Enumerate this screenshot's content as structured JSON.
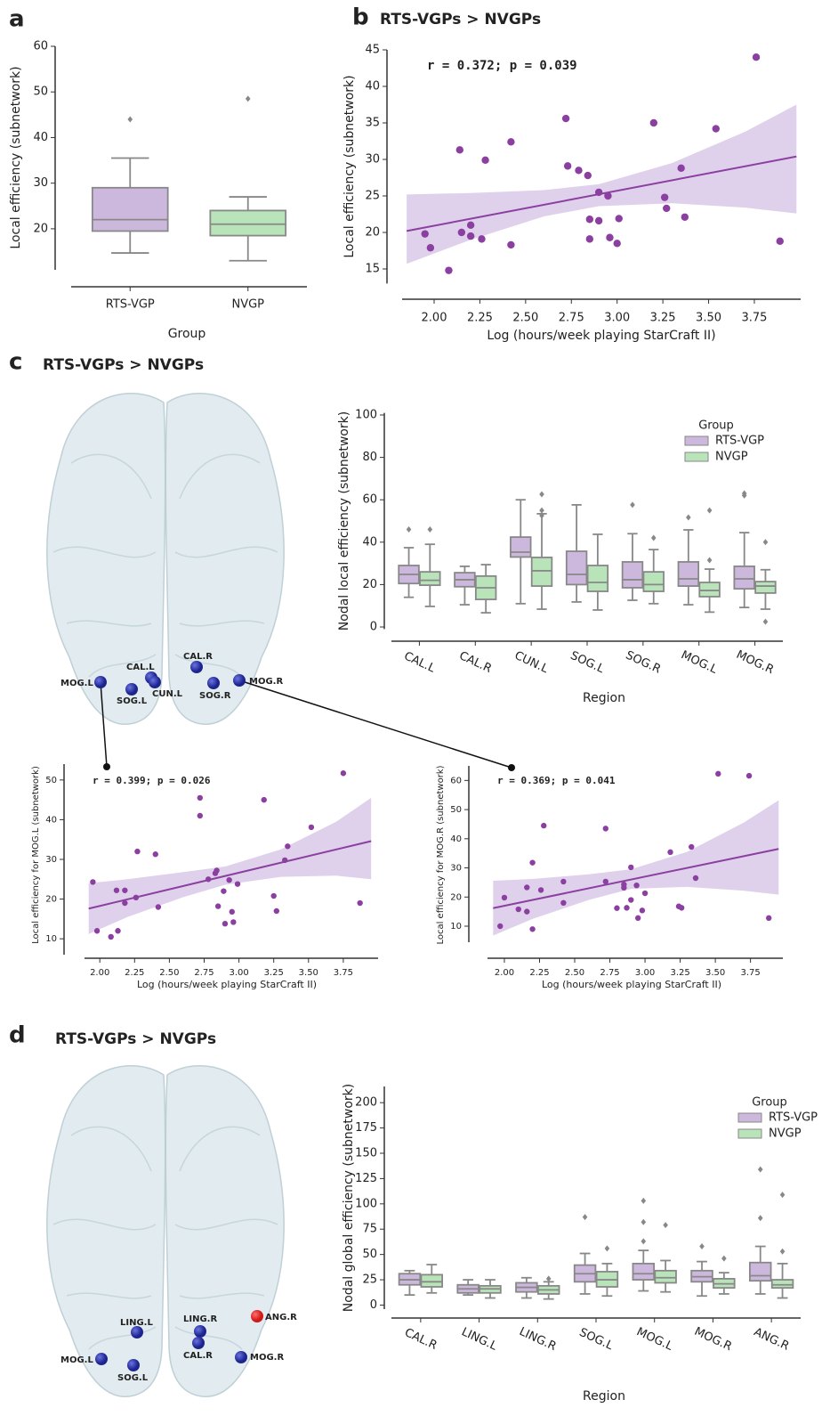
{
  "panels": [
    {
      "letter": "a"
    },
    {
      "letter": "b"
    },
    {
      "letter": "c",
      "title": "RTS-VGPs > NVGPs"
    },
    {
      "letter": "d",
      "title": "RTS-VGPs > NVGPs"
    }
  ],
  "brain_c": {
    "nodes": [
      "MOG.L",
      "SOG.L",
      "CAL.L",
      "CUN.L",
      "CAL.R",
      "SOG.R",
      "MOG.R"
    ]
  },
  "brain_d": {
    "nodes": [
      "LING.L",
      "MOG.L",
      "SOG.L",
      "LING.R",
      "CAL.R",
      "ANG.R",
      "MOG.R"
    ]
  },
  "chart_data": [
    {
      "type": "box",
      "x_label": "Group",
      "y_label": "Local efficiency (subnetwork)",
      "categories": [
        "RTS-VGP",
        "NVGP"
      ],
      "colors": [
        "#cdb8dd",
        "#b9e3b9"
      ],
      "boxes": [
        {
          "whislo": 14.7,
          "q1": 19.5,
          "med": 22,
          "q3": 29,
          "whishi": 35.5,
          "fliers": [
            44
          ]
        },
        {
          "whislo": 13,
          "q1": 18.5,
          "med": 21,
          "q3": 24,
          "whishi": 27,
          "fliers": [
            48.5
          ]
        }
      ],
      "ylim": [
        11,
        60
      ],
      "yticks": [
        20,
        30,
        40,
        50,
        60
      ]
    },
    {
      "type": "scatter",
      "title": "RTS-VGPs > NVGPs",
      "annotation": "r = 0.372; p = 0.039",
      "x_label": "Log (hours/week playing StarCraft II)",
      "y_label": "Local efficiency (subnetwork)",
      "color": "#8b3fa0",
      "band_color": "#d9c8e8",
      "x": [
        1.95,
        1.98,
        2.08,
        2.14,
        2.15,
        2.2,
        2.2,
        2.26,
        2.28,
        2.42,
        2.42,
        2.72,
        2.73,
        2.79,
        2.84,
        2.85,
        2.85,
        2.9,
        2.9,
        2.95,
        2.96,
        3.0,
        3.01,
        3.2,
        3.26,
        3.27,
        3.35,
        3.37,
        3.54,
        3.76,
        3.89
      ],
      "values": [
        19.8,
        17.9,
        14.8,
        31.3,
        20.0,
        21.0,
        19.5,
        19.1,
        29.9,
        32.4,
        18.3,
        35.6,
        29.1,
        28.5,
        27.8,
        21.8,
        19.1,
        25.5,
        21.6,
        25.0,
        19.3,
        18.5,
        21.9,
        35.0,
        24.8,
        23.3,
        28.8,
        22.1,
        34.2,
        44.0,
        18.8
      ],
      "fit": {
        "x": [
          1.85,
          3.98
        ],
        "y": [
          20.2,
          30.4
        ]
      },
      "ci": {
        "x": [
          1.85,
          2.2,
          2.6,
          2.9,
          3.3,
          3.7,
          3.98
        ],
        "lower": [
          15.7,
          19.0,
          22.2,
          23.6,
          24.0,
          23.4,
          22.6
        ],
        "upper": [
          25.2,
          25.4,
          25.8,
          26.6,
          29.5,
          33.8,
          37.5
        ]
      },
      "xlim": [
        1.825,
        4.003
      ],
      "ylim": [
        13,
        45
      ],
      "xticks": [
        {
          "value": 2,
          "label": "2.00"
        },
        2.25,
        {
          "value": 2.5,
          "label": "2.50"
        },
        2.75,
        {
          "value": 3,
          "label": "3.00"
        },
        3.25,
        {
          "value": 3.5,
          "label": "3.50"
        },
        3.75
      ],
      "yticks": [
        15,
        20,
        25,
        30,
        35,
        40,
        45
      ]
    },
    {
      "type": "box",
      "x_label": "Region",
      "y_label": "Nodal local efficiency (subnetwork)",
      "categories": [
        "CAL.L",
        "CAL.R",
        "CUN.L",
        "SOG.L",
        "SOG.R",
        "MOG.L",
        "MOG.R"
      ],
      "legend_title": "Group",
      "legend": "upper right",
      "series": [
        {
          "name": "RTS-VGP",
          "color": "#cdb8dd",
          "boxes": [
            {
              "whislo": 14,
              "q1": 20.5,
              "med": 24.8,
              "q3": 29,
              "whishi": 37.4,
              "fliers": [
                46
              ]
            },
            {
              "whislo": 10.5,
              "q1": 19,
              "med": 22.3,
              "q3": 25.6,
              "whishi": 28.6,
              "fliers": []
            },
            {
              "whislo": 11,
              "q1": 33,
              "med": 35.3,
              "q3": 42.4,
              "whishi": 60,
              "fliers": []
            },
            {
              "whislo": 11.8,
              "q1": 20,
              "med": 24.8,
              "q3": 35.7,
              "whishi": 57.6,
              "fliers": []
            },
            {
              "whislo": 12.6,
              "q1": 18.5,
              "med": 22.3,
              "q3": 30.7,
              "whishi": 44,
              "fliers": [
                57.6
              ]
            },
            {
              "whislo": 10.5,
              "q1": 19.3,
              "med": 22.7,
              "q3": 30.7,
              "whishi": 45.8,
              "fliers": [
                51.7
              ]
            },
            {
              "whislo": 9.2,
              "q1": 18,
              "med": 22.7,
              "q3": 28.6,
              "whishi": 44.5,
              "fliers": [
                62,
                63
              ]
            }
          ]
        },
        {
          "name": "NVGP",
          "color": "#b9e3b9",
          "boxes": [
            {
              "whislo": 9.7,
              "q1": 19.7,
              "med": 22,
              "q3": 26,
              "whishi": 39,
              "fliers": [
                46
              ]
            },
            {
              "whislo": 6.7,
              "q1": 13,
              "med": 18.5,
              "q3": 24,
              "whishi": 29.4,
              "fliers": []
            },
            {
              "whislo": 8.4,
              "q1": 19.3,
              "med": 26.5,
              "q3": 32.8,
              "whishi": 53.4,
              "fliers": [
                52.5,
                55,
                62.6
              ]
            },
            {
              "whislo": 8,
              "q1": 16.8,
              "med": 21,
              "q3": 29,
              "whishi": 43.7,
              "fliers": []
            },
            {
              "whislo": 11,
              "q1": 16.8,
              "med": 20,
              "q3": 26,
              "whishi": 36.5,
              "fliers": [
                42
              ]
            },
            {
              "whislo": 7,
              "q1": 14.3,
              "med": 17.2,
              "q3": 21,
              "whishi": 27.3,
              "fliers": [
                31.5,
                55
              ]
            },
            {
              "whislo": 8.4,
              "q1": 16,
              "med": 19.3,
              "q3": 21.4,
              "whishi": 27,
              "fliers": [
                2.5,
                40
              ]
            }
          ]
        }
      ],
      "ylim": [
        -1,
        101
      ],
      "yticks": [
        0,
        20,
        40,
        60,
        80,
        100
      ]
    },
    {
      "type": "scatter",
      "annotation": "r = 0.399; p = 0.026",
      "x_label": "Log (hours/week playing StarCraft II)",
      "y_label": "Local efficiency for MOG.L (subnetwork)",
      "color": "#8b3fa0",
      "band_color": "#d9c8e8",
      "x": [
        1.95,
        1.98,
        2.08,
        2.12,
        2.13,
        2.18,
        2.18,
        2.26,
        2.27,
        2.4,
        2.42,
        2.72,
        2.72,
        2.78,
        2.83,
        2.84,
        2.85,
        2.89,
        2.9,
        2.93,
        2.95,
        2.96,
        2.99,
        3.18,
        3.25,
        3.27,
        3.33,
        3.35,
        3.52,
        3.75,
        3.87
      ],
      "values": [
        24.3,
        12,
        10.5,
        22.2,
        12,
        22.2,
        19,
        20.4,
        32,
        31.3,
        18,
        45.5,
        41,
        25,
        26.5,
        27.2,
        18.2,
        22,
        13.8,
        24.8,
        16.8,
        14.2,
        23.8,
        45,
        20.8,
        17,
        29.8,
        33.3,
        38.1,
        51.7,
        19
      ],
      "fit": {
        "x": [
          1.92,
          3.95
        ],
        "y": [
          17.6,
          34.6
        ]
      },
      "ci": {
        "x": [
          1.92,
          2.2,
          2.6,
          2.9,
          3.3,
          3.7,
          3.95
        ],
        "lower": [
          11.2,
          15.5,
          20.5,
          23.6,
          25.6,
          25.9,
          25.0
        ],
        "upper": [
          24.0,
          25.0,
          26.8,
          28.2,
          32.5,
          39.5,
          45.5
        ]
      },
      "xlim": [
        1.89,
        4.0
      ],
      "ylim": [
        6,
        54
      ],
      "xticks": [
        {
          "value": 2,
          "label": "2.00"
        },
        2.25,
        {
          "value": 2.5,
          "label": "2.50"
        },
        2.75,
        {
          "value": 3,
          "label": "3.00"
        },
        3.25,
        {
          "value": 3.5,
          "label": "3.50"
        },
        3.75
      ],
      "yticks": [
        10,
        20,
        30,
        40,
        50
      ]
    },
    {
      "type": "scatter",
      "annotation": "r = 0.369; p = 0.041",
      "x_label": "Log (hours/week playing StarCraft II)",
      "y_label": "Local efficiency for MOG.R (subnetwork)",
      "color": "#8b3fa0",
      "band_color": "#d9c8e8",
      "x": [
        1.97,
        2.0,
        2.1,
        2.16,
        2.16,
        2.2,
        2.2,
        2.26,
        2.28,
        2.42,
        2.42,
        2.72,
        2.72,
        2.8,
        2.85,
        2.85,
        2.87,
        2.9,
        2.9,
        2.94,
        2.95,
        2.98,
        3.0,
        3.18,
        3.24,
        3.26,
        3.33,
        3.36,
        3.52,
        3.74,
        3.88
      ],
      "values": [
        10,
        19.8,
        15.8,
        15,
        23.3,
        31.8,
        9,
        22.4,
        44.5,
        25.3,
        18,
        43.5,
        25.3,
        16.2,
        23.2,
        24.3,
        16.3,
        19,
        30.2,
        24,
        12.8,
        15.4,
        21.3,
        35.4,
        16.8,
        16.3,
        37.2,
        26.5,
        62.3,
        61.6,
        12.8
      ],
      "fit": {
        "x": [
          1.92,
          3.95
        ],
        "y": [
          16.2,
          36.5
        ]
      },
      "ci": {
        "x": [
          1.92,
          2.2,
          2.6,
          2.9,
          3.3,
          3.7,
          3.95
        ],
        "lower": [
          6.8,
          12.5,
          19,
          22.8,
          23.5,
          22.2,
          20.8
        ],
        "upper": [
          25.6,
          26.2,
          27.8,
          29.5,
          35.5,
          45.5,
          53.2
        ]
      },
      "xlim": [
        1.88,
        3.98
      ],
      "ylim": [
        4.5,
        65
      ],
      "xticks": [
        {
          "value": 2,
          "label": "2.00"
        },
        2.25,
        {
          "value": 2.5,
          "label": "2.50"
        },
        2.75,
        {
          "value": 3,
          "label": "3.00"
        },
        3.25,
        {
          "value": 3.5,
          "label": "3.50"
        },
        3.75
      ],
      "yticks": [
        10,
        20,
        30,
        40,
        50,
        60
      ]
    },
    {
      "type": "box",
      "x_label": "Region",
      "y_label": "Nodal global efficiency (subnetwork)",
      "categories": [
        "CAL.R",
        "LING.L",
        "LING.R",
        "SOG.L",
        "MOG.L",
        "MOG.R",
        "ANG.R"
      ],
      "legend_title": "Group",
      "legend": "upper right",
      "series": [
        {
          "name": "RTS-VGP",
          "color": "#cdb8dd",
          "boxes": [
            {
              "whislo": 10,
              "q1": 20,
              "med": 25,
              "q3": 31,
              "whishi": 34,
              "fliers": []
            },
            {
              "whislo": 10,
              "q1": 12,
              "med": 16,
              "q3": 20,
              "whishi": 25,
              "fliers": []
            },
            {
              "whislo": 7,
              "q1": 13,
              "med": 17.5,
              "q3": 22,
              "whishi": 27,
              "fliers": []
            },
            {
              "whislo": 11,
              "q1": 23,
              "med": 31,
              "q3": 39.5,
              "whishi": 51,
              "fliers": [
                87
              ]
            },
            {
              "whislo": 14,
              "q1": 25,
              "med": 31,
              "q3": 41,
              "whishi": 54,
              "fliers": [
                63,
                82,
                103
              ]
            },
            {
              "whislo": 9,
              "q1": 23,
              "med": 28,
              "q3": 34,
              "whishi": 43,
              "fliers": [
                58
              ]
            },
            {
              "whislo": 11,
              "q1": 24,
              "med": 29,
              "q3": 42,
              "whishi": 58,
              "fliers": [
                86,
                134
              ]
            }
          ]
        },
        {
          "name": "NVGP",
          "color": "#b9e3b9",
          "boxes": [
            {
              "whislo": 12,
              "q1": 18,
              "med": 23,
              "q3": 30,
              "whishi": 40,
              "fliers": []
            },
            {
              "whislo": 7,
              "q1": 12,
              "med": 16,
              "q3": 19,
              "whishi": 25,
              "fliers": []
            },
            {
              "whislo": 6,
              "q1": 11,
              "med": 15,
              "q3": 19,
              "whishi": 23,
              "fliers": [
                26
              ]
            },
            {
              "whislo": 9,
              "q1": 18,
              "med": 25,
              "q3": 33,
              "whishi": 41,
              "fliers": [
                56
              ]
            },
            {
              "whislo": 13,
              "q1": 22,
              "med": 27,
              "q3": 34,
              "whishi": 44,
              "fliers": [
                79
              ]
            },
            {
              "whislo": 11,
              "q1": 17,
              "med": 21,
              "q3": 26,
              "whishi": 32,
              "fliers": [
                46
              ]
            },
            {
              "whislo": 7,
              "q1": 17,
              "med": 20,
              "q3": 25,
              "whishi": 41,
              "fliers": [
                53,
                109
              ]
            }
          ]
        }
      ],
      "ylim": [
        -4,
        216
      ],
      "yticks": [
        0,
        25,
        50,
        75,
        100,
        125,
        150,
        175,
        200
      ]
    }
  ]
}
